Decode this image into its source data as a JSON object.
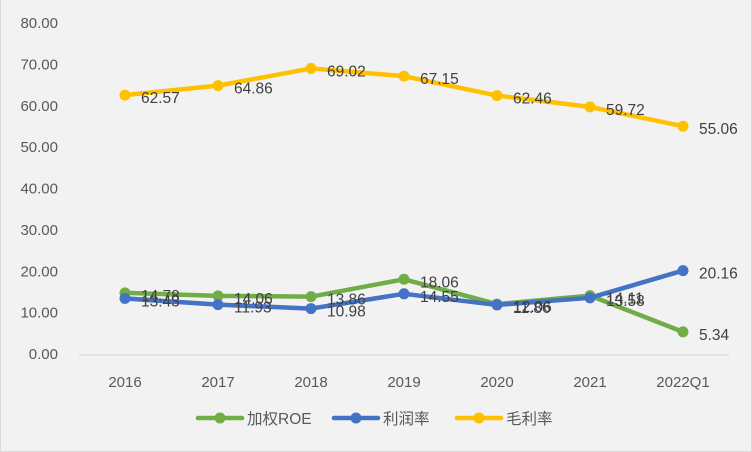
{
  "chart_data": {
    "type": "line",
    "title": "",
    "xlabel": "",
    "ylabel": "",
    "categories": [
      "2016",
      "2017",
      "2018",
      "2019",
      "2020",
      "2021",
      "2022Q1"
    ],
    "ylim": [
      0,
      80
    ],
    "yticks": [
      "0.00",
      "10.00",
      "20.00",
      "30.00",
      "40.00",
      "50.00",
      "60.00",
      "70.00",
      "80.00"
    ],
    "ytick_values": [
      0,
      10,
      20,
      30,
      40,
      50,
      60,
      70,
      80
    ],
    "grid": false,
    "legend_position": "bottom",
    "series": [
      {
        "name": "加权ROE",
        "color": "#70ad47",
        "values": [
          14.78,
          14.06,
          13.86,
          18.06,
          12.06,
          14.11,
          5.34
        ],
        "labels": [
          "14.78",
          "14.06",
          "13.86",
          "18.06",
          "12.06",
          "14.11",
          "5.34"
        ]
      },
      {
        "name": "利润率",
        "color": "#4472c4",
        "values": [
          13.43,
          11.93,
          10.98,
          14.55,
          11.86,
          13.58,
          20.16
        ],
        "labels": [
          "13.43",
          "11.93",
          "10.98",
          "14.55",
          "11.86",
          "13.58",
          "20.16"
        ]
      },
      {
        "name": "毛利率",
        "color": "#ffc000",
        "values": [
          62.57,
          64.86,
          69.02,
          67.15,
          62.46,
          59.72,
          55.06
        ],
        "labels": [
          "62.57",
          "64.86",
          "69.02",
          "67.15",
          "62.46",
          "59.72",
          "55.06"
        ]
      }
    ]
  }
}
